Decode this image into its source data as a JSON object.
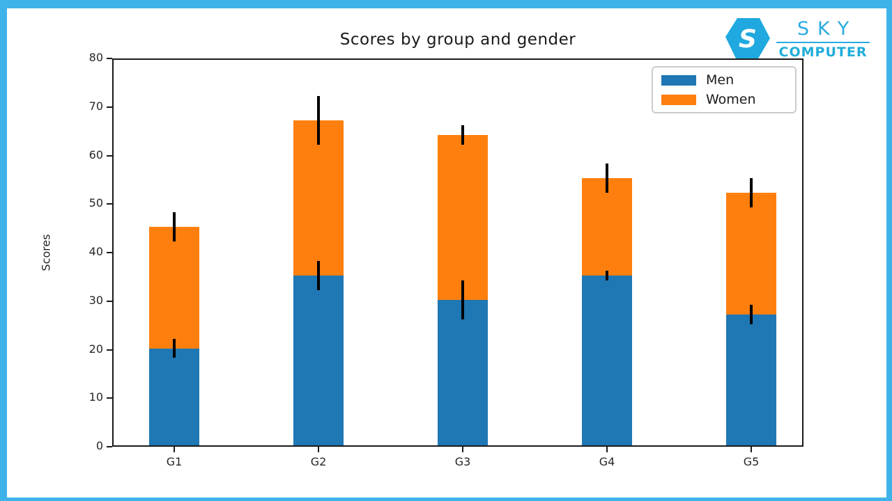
{
  "page": {
    "background": "#ffffff",
    "frame_color": "#3eb3e9"
  },
  "logo": {
    "monogram": "S",
    "line1": "SKY",
    "line2": "COMPUTER",
    "color": "#2babe1"
  },
  "chart_data": {
    "type": "bar",
    "stacked": true,
    "title": "Scores by group and gender",
    "xlabel": "",
    "ylabel": "Scores",
    "categories": [
      "G1",
      "G2",
      "G3",
      "G4",
      "G5"
    ],
    "series": [
      {
        "name": "Men",
        "color": "#1f77b4",
        "values": [
          20,
          35,
          30,
          35,
          27
        ],
        "std": [
          2,
          3,
          4,
          1,
          2
        ]
      },
      {
        "name": "Women",
        "color": "#ff7f0e",
        "values": [
          25,
          32,
          34,
          20,
          25
        ],
        "std": [
          3,
          5,
          2,
          3,
          3
        ]
      }
    ],
    "totals": [
      45,
      67,
      64,
      55,
      52
    ],
    "ylim": [
      0,
      80
    ],
    "yticks": [
      0,
      10,
      20,
      30,
      40,
      50,
      60,
      70,
      80
    ],
    "grid": false,
    "legend_position": "upper right",
    "error_bar_color": "#000000",
    "spine_color": "#1a1a1a"
  }
}
